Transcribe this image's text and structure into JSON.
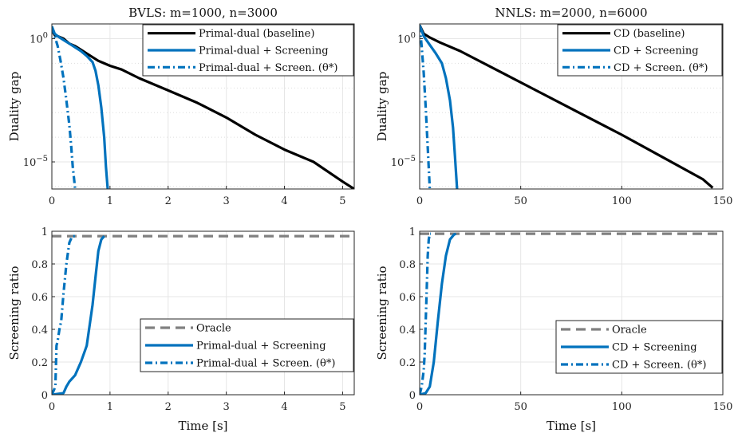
{
  "chart_data": [
    {
      "type": "line",
      "title": "BVLS: m=1000, n=3000",
      "xlabel": "",
      "ylabel": "Duality gap",
      "xlim": [
        0,
        5.2
      ],
      "yscale": "log",
      "ylim_log10": [
        -6.1,
        0.6
      ],
      "xticks": [
        0,
        1,
        2,
        3,
        4,
        5
      ],
      "xtick_labels": [
        "0",
        "1",
        "2",
        "3",
        "4",
        "5"
      ],
      "yticks_log10": [
        0,
        -5
      ],
      "ytick_labels": [
        "10^0",
        "10^-5"
      ],
      "grid": true,
      "legend_position": "top-right",
      "series": [
        {
          "name": "Primal-dual (baseline)",
          "color": "#000000",
          "style": "solid",
          "x": [
            0,
            0.05,
            0.1,
            0.2,
            0.3,
            0.4,
            0.5,
            0.6,
            0.7,
            0.8,
            0.9,
            1.0,
            1.2,
            1.5,
            2.0,
            2.5,
            3.0,
            3.5,
            4.0,
            4.5,
            5.0,
            5.2
          ],
          "y_log10": [
            0.35,
            0.15,
            0.1,
            0.0,
            -0.2,
            -0.3,
            -0.45,
            -0.6,
            -0.75,
            -0.9,
            -1.0,
            -1.1,
            -1.25,
            -1.6,
            -2.1,
            -2.6,
            -3.2,
            -3.9,
            -4.5,
            -5.0,
            -5.8,
            -6.1
          ]
        },
        {
          "name": "Primal-dual + Screening",
          "color": "#0072BD",
          "style": "solid",
          "x": [
            0,
            0.05,
            0.1,
            0.2,
            0.3,
            0.4,
            0.5,
            0.6,
            0.7,
            0.75,
            0.8,
            0.85,
            0.9,
            0.93,
            0.96
          ],
          "y_log10": [
            0.5,
            0.2,
            0.1,
            -0.05,
            -0.2,
            -0.35,
            -0.5,
            -0.7,
            -0.95,
            -1.3,
            -1.9,
            -2.8,
            -4.0,
            -5.2,
            -6.1
          ]
        },
        {
          "name": "Primal-dual + Screen. (θ*)",
          "color": "#0072BD",
          "style": "dashdot",
          "x": [
            0,
            0.05,
            0.1,
            0.15,
            0.2,
            0.25,
            0.3,
            0.33,
            0.36,
            0.4
          ],
          "y_log10": [
            0.5,
            0.1,
            -0.3,
            -0.9,
            -1.6,
            -2.5,
            -3.5,
            -4.3,
            -5.2,
            -6.1
          ]
        }
      ]
    },
    {
      "type": "line",
      "title": "NNLS: m=2000, n=6000",
      "xlabel": "",
      "ylabel": "Duality gap",
      "xlim": [
        0,
        150
      ],
      "yscale": "log",
      "ylim_log10": [
        -6.1,
        0.6
      ],
      "xticks": [
        0,
        50,
        100,
        150
      ],
      "xtick_labels": [
        "0",
        "50",
        "100",
        "150"
      ],
      "yticks_log10": [
        0,
        -5
      ],
      "ytick_labels": [
        "10^0",
        "10^-5"
      ],
      "grid": true,
      "legend_position": "top-right",
      "series": [
        {
          "name": "CD (baseline)",
          "color": "#000000",
          "style": "solid",
          "x": [
            0,
            2,
            5,
            10,
            20,
            40,
            60,
            80,
            100,
            120,
            140,
            145
          ],
          "y_log10": [
            0.55,
            0.2,
            0.05,
            -0.15,
            -0.5,
            -1.35,
            -2.2,
            -3.05,
            -3.9,
            -4.8,
            -5.7,
            -6.05
          ]
        },
        {
          "name": "CD + Screening",
          "color": "#0072BD",
          "style": "solid",
          "x": [
            0,
            2,
            5,
            8,
            11,
            13,
            15,
            16.5,
            17.5,
            18.5
          ],
          "y_log10": [
            0.55,
            0.1,
            -0.25,
            -0.6,
            -1.0,
            -1.6,
            -2.5,
            -3.6,
            -4.8,
            -6.1
          ]
        },
        {
          "name": "CD + Screen. (θ*)",
          "color": "#0072BD",
          "style": "dashdot",
          "x": [
            0,
            1,
            2,
            3,
            4,
            5
          ],
          "y_log10": [
            0.55,
            -0.3,
            -1.4,
            -2.8,
            -4.4,
            -6.1
          ]
        }
      ]
    },
    {
      "type": "line",
      "title": "",
      "xlabel": "Time [s]",
      "ylabel": "Screening ratio",
      "xlim": [
        0,
        5.2
      ],
      "ylim": [
        0,
        1
      ],
      "xticks": [
        0,
        1,
        2,
        3,
        4,
        5
      ],
      "xtick_labels": [
        "0",
        "1",
        "2",
        "3",
        "4",
        "5"
      ],
      "yticks": [
        0,
        0.2,
        0.4,
        0.6,
        0.8,
        1
      ],
      "ytick_labels": [
        "0",
        "0.2",
        "0.4",
        "0.6",
        "0.8",
        "1"
      ],
      "grid": true,
      "legend_position": "bottom-right",
      "series": [
        {
          "name": "Oracle",
          "color": "#808080",
          "style": "dashed",
          "x": [
            0,
            5.2
          ],
          "y": [
            0.97,
            0.97
          ]
        },
        {
          "name": "Primal-dual + Screening",
          "color": "#0072BD",
          "style": "solid",
          "x": [
            0,
            0.2,
            0.25,
            0.3,
            0.4,
            0.5,
            0.6,
            0.7,
            0.75,
            0.8,
            0.85,
            0.9
          ],
          "y": [
            0,
            0.01,
            0.05,
            0.08,
            0.12,
            0.2,
            0.3,
            0.55,
            0.72,
            0.88,
            0.95,
            0.97
          ]
        },
        {
          "name": "Primal-dual + Screen. (θ*)",
          "color": "#0072BD",
          "style": "dashdot",
          "x": [
            0,
            0.06,
            0.08,
            0.1,
            0.13,
            0.16,
            0.2,
            0.25,
            0.3,
            0.35,
            0.4
          ],
          "y": [
            0,
            0.05,
            0.3,
            0.33,
            0.4,
            0.45,
            0.62,
            0.8,
            0.93,
            0.97,
            0.97
          ]
        }
      ]
    },
    {
      "type": "line",
      "title": "",
      "xlabel": "Time [s]",
      "ylabel": "Screening ratio",
      "xlim": [
        0,
        150
      ],
      "ylim": [
        0,
        1
      ],
      "xticks": [
        0,
        50,
        100,
        150
      ],
      "xtick_labels": [
        "0",
        "50",
        "100",
        "150"
      ],
      "yticks": [
        0,
        0.2,
        0.4,
        0.6,
        0.8,
        1
      ],
      "ytick_labels": [
        "0",
        "0.2",
        "0.4",
        "0.6",
        "0.8",
        "1"
      ],
      "grid": true,
      "legend_position": "bottom-right",
      "series": [
        {
          "name": "Oracle",
          "color": "#808080",
          "style": "dashed",
          "x": [
            0,
            150
          ],
          "y": [
            0.985,
            0.985
          ]
        },
        {
          "name": "CD + Screening",
          "color": "#0072BD",
          "style": "solid",
          "x": [
            0,
            3,
            5,
            7,
            9,
            11,
            13,
            15,
            17,
            18
          ],
          "y": [
            0,
            0.01,
            0.05,
            0.2,
            0.45,
            0.68,
            0.85,
            0.95,
            0.98,
            0.985
          ]
        },
        {
          "name": "CD + Screen. (θ*)",
          "color": "#0072BD",
          "style": "dashdot",
          "x": [
            0,
            1,
            2,
            2.5,
            3,
            3.5,
            4,
            4.5,
            5,
            5.5
          ],
          "y": [
            0,
            0.05,
            0.15,
            0.25,
            0.45,
            0.65,
            0.85,
            0.95,
            0.985,
            0.985
          ]
        }
      ]
    }
  ]
}
